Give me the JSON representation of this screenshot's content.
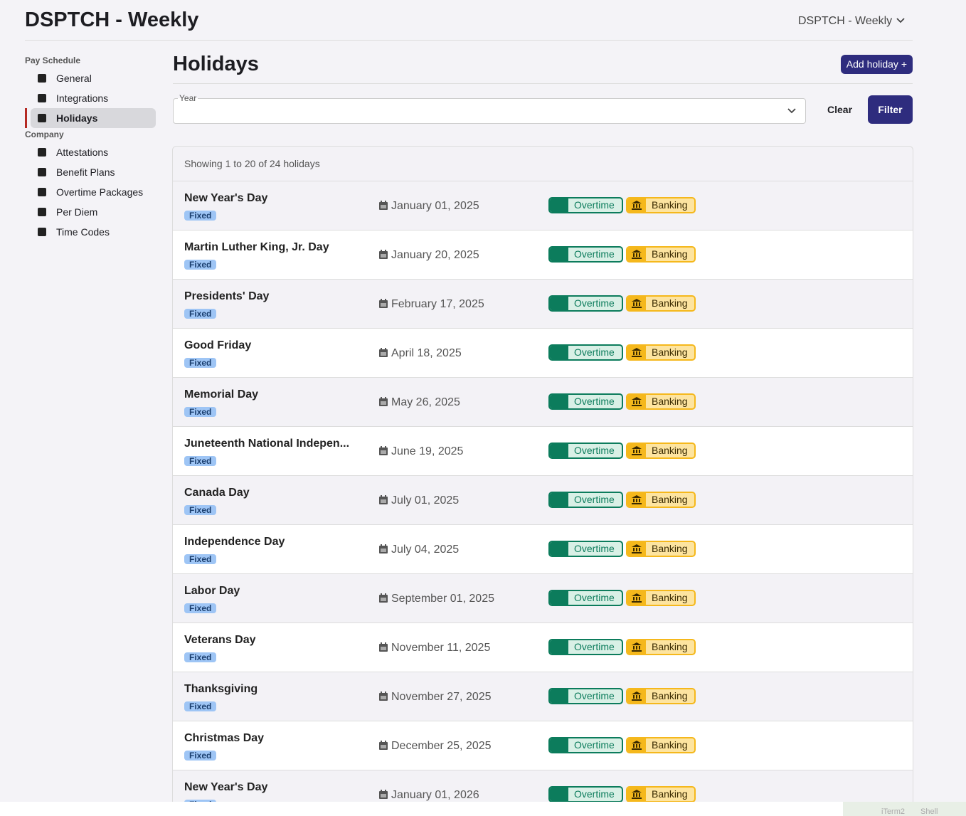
{
  "header": {
    "title": "DSPTCH - Weekly",
    "schedule_select": "DSPTCH - Weekly"
  },
  "sidebar": {
    "sections": [
      {
        "title": "Pay Schedule",
        "items": [
          "General",
          "Integrations",
          "Holidays"
        ]
      },
      {
        "title": "Company",
        "items": [
          "Attestations",
          "Benefit Plans",
          "Overtime Packages",
          "Per Diem",
          "Time Codes"
        ]
      }
    ]
  },
  "page": {
    "title": "Holidays",
    "add_button": "Add holiday +"
  },
  "filter": {
    "year_label": "Year",
    "clear": "Clear",
    "submit": "Filter"
  },
  "table": {
    "summary": "Showing 1 to 20 of 24 holidays",
    "rows": [
      {
        "name": "New Year's Day",
        "tag": "Fixed",
        "date": "January 01, 2025",
        "overtime": "Overtime",
        "banking": "Banking"
      },
      {
        "name": "Martin Luther King, Jr. Day",
        "tag": "Fixed",
        "date": "January 20, 2025",
        "overtime": "Overtime",
        "banking": "Banking"
      },
      {
        "name": "Presidents' Day",
        "tag": "Fixed",
        "date": "February 17, 2025",
        "overtime": "Overtime",
        "banking": "Banking"
      },
      {
        "name": "Good Friday",
        "tag": "Fixed",
        "date": "April 18, 2025",
        "overtime": "Overtime",
        "banking": "Banking"
      },
      {
        "name": "Memorial Day",
        "tag": "Fixed",
        "date": "May 26, 2025",
        "overtime": "Overtime",
        "banking": "Banking"
      },
      {
        "name": "Juneteenth National Indepen...",
        "tag": "Fixed",
        "date": "June 19, 2025",
        "overtime": "Overtime",
        "banking": "Banking"
      },
      {
        "name": "Canada Day",
        "tag": "Fixed",
        "date": "July 01, 2025",
        "overtime": "Overtime",
        "banking": "Banking"
      },
      {
        "name": "Independence Day",
        "tag": "Fixed",
        "date": "July 04, 2025",
        "overtime": "Overtime",
        "banking": "Banking"
      },
      {
        "name": "Labor Day",
        "tag": "Fixed",
        "date": "September 01, 2025",
        "overtime": "Overtime",
        "banking": "Banking"
      },
      {
        "name": "Veterans Day",
        "tag": "Fixed",
        "date": "November 11, 2025",
        "overtime": "Overtime",
        "banking": "Banking"
      },
      {
        "name": "Thanksgiving",
        "tag": "Fixed",
        "date": "November 27, 2025",
        "overtime": "Overtime",
        "banking": "Banking"
      },
      {
        "name": "Christmas Day",
        "tag": "Fixed",
        "date": "December 25, 2025",
        "overtime": "Overtime",
        "banking": "Banking"
      },
      {
        "name": "New Year's Day",
        "tag": "Fixed",
        "date": "January 01, 2026",
        "overtime": "Overtime",
        "banking": "Banking"
      }
    ]
  },
  "dock": {
    "items": [
      "iTerm2",
      "Shell"
    ]
  }
}
